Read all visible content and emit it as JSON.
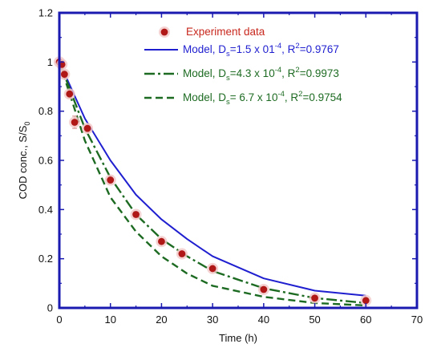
{
  "chart_data": {
    "type": "scatter",
    "title": "",
    "xlabel": "Time (h)",
    "ylabel": "COD conc., S/S0",
    "ylabel_parts": {
      "main": "COD conc., S/S",
      "sub": "0"
    },
    "xlim": [
      0,
      70
    ],
    "ylim": [
      0,
      1.2
    ],
    "x_ticks": [
      0,
      10,
      20,
      30,
      40,
      50,
      60,
      70
    ],
    "y_ticks": [
      0,
      0.2,
      0.4,
      0.6,
      0.8,
      1,
      1.2
    ],
    "x_tick_labels": [
      "0",
      "10",
      "20",
      "30",
      "40",
      "50",
      "60",
      "70"
    ],
    "y_tick_labels": [
      "0",
      "0.2",
      "0.4",
      "0.6",
      "0.8",
      "1",
      "1.2"
    ],
    "grid": false,
    "legend_position": "top-right",
    "colors": {
      "frame": "#1a1ab0",
      "markers": "#b01818",
      "model_a": "#1f1fd0",
      "model_b": "#1d6b22",
      "model_c": "#1d6b22",
      "legend_experiment": "#c8281e",
      "legend_model_a": "#1f1fd0",
      "legend_model_b": "#1d6b22",
      "legend_model_c": "#1d6b22"
    },
    "series": [
      {
        "name": "Experiment data",
        "kind": "markers",
        "x": [
          0,
          0.5,
          1,
          2,
          3,
          5.5,
          10,
          15,
          20,
          24,
          30,
          40,
          50,
          60
        ],
        "y": [
          1.0,
          0.99,
          0.95,
          0.87,
          0.755,
          0.73,
          0.52,
          0.38,
          0.27,
          0.22,
          0.16,
          0.075,
          0.04,
          0.03
        ],
        "error": [
          0.01,
          0.015,
          0.015,
          0.015,
          0.025,
          0.015,
          0.015,
          0.01,
          0.01,
          0.01,
          0.008,
          0.005,
          0.005,
          0.005
        ]
      },
      {
        "name_parts": {
          "pre": "Model, D",
          "sub": "s",
          "mid": "=1.5 x 01",
          "sup": "-4",
          "post": ", R",
          "sup2": "2",
          "end": "=0.9767"
        },
        "kind": "solid",
        "x": [
          0,
          5,
          10,
          15,
          20,
          25,
          30,
          40,
          50,
          60
        ],
        "y": [
          1.0,
          0.77,
          0.6,
          0.46,
          0.36,
          0.28,
          0.21,
          0.12,
          0.07,
          0.05
        ]
      },
      {
        "name_parts": {
          "pre": "Model, D",
          "sub": "s",
          "mid": "=4.3 x 10",
          "sup": "-4",
          "post": ", R",
          "sup2": "2",
          "end": "=0.9973"
        },
        "kind": "dashdot",
        "x": [
          0,
          5,
          10,
          15,
          20,
          25,
          30,
          40,
          50,
          60
        ],
        "y": [
          1.0,
          0.73,
          0.53,
          0.38,
          0.28,
          0.21,
          0.15,
          0.08,
          0.04,
          0.02
        ]
      },
      {
        "name_parts": {
          "pre": "Model, D",
          "sub": "s",
          "mid": "= 6.7 x 10",
          "sup": "-4",
          "post": ", R",
          "sup2": "2",
          "end": "=0.9754"
        },
        "kind": "dashed",
        "x": [
          0,
          5,
          10,
          15,
          20,
          25,
          30,
          40,
          50,
          60
        ],
        "y": [
          1.0,
          0.68,
          0.45,
          0.31,
          0.21,
          0.14,
          0.09,
          0.045,
          0.02,
          0.01
        ]
      }
    ]
  }
}
